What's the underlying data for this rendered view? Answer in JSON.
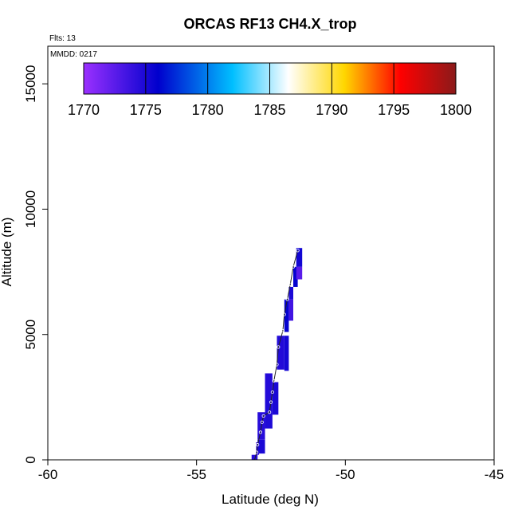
{
  "chart_data": {
    "type": "heatmap",
    "title": "ORCAS RF13 CH4.X_trop",
    "flights_note": "Flts: 13",
    "date_note": "MMDD: 0217",
    "xlabel": "Latitude (deg N)",
    "ylabel": "Altitude (m)",
    "xlim": [
      -60,
      -45
    ],
    "ylim": [
      0,
      16500
    ],
    "x_ticks": [
      -60,
      -55,
      -50,
      -45
    ],
    "x_tick_labels": [
      "-60",
      "-55",
      "-50",
      "-45"
    ],
    "y_ticks": [
      0,
      5000,
      10000,
      15000
    ],
    "y_tick_labels": [
      "0",
      "5000",
      "10000",
      "15000"
    ],
    "colorbar": {
      "min": 1770,
      "max": 1800,
      "ticks": [
        1770,
        1775,
        1780,
        1785,
        1790,
        1795,
        1800
      ],
      "tick_labels": [
        "1770",
        "1775",
        "1780",
        "1785",
        "1790",
        "1795",
        "1800"
      ],
      "colors": [
        "#9b30ff",
        "#0000cd",
        "#00bfff",
        "#ffffff",
        "#ffd700",
        "#ff0000",
        "#8b1a1a"
      ],
      "color_positions": [
        0,
        0.2,
        0.4,
        0.55,
        0.7,
        0.85,
        1
      ]
    },
    "cells": [
      {
        "lat0": -53.15,
        "lat1": -52.95,
        "alt0": 0,
        "alt1": 200,
        "value": 1774.5
      },
      {
        "lat0": -53.0,
        "lat1": -52.9,
        "alt0": 200,
        "alt1": 700,
        "value": 1774.0
      },
      {
        "lat0": -52.95,
        "lat1": -52.7,
        "alt0": 250,
        "alt1": 800,
        "value": 1775.0
      },
      {
        "lat0": -52.95,
        "lat1": -52.7,
        "alt0": 800,
        "alt1": 1900,
        "value": 1774.5
      },
      {
        "lat0": -52.7,
        "lat1": -52.45,
        "alt0": 1250,
        "alt1": 2400,
        "value": 1774.8
      },
      {
        "lat0": -52.7,
        "lat1": -52.45,
        "alt0": 2400,
        "alt1": 3450,
        "value": 1774.6
      },
      {
        "lat0": -52.45,
        "lat1": -52.25,
        "alt0": 1800,
        "alt1": 3100,
        "value": 1775.0
      },
      {
        "lat0": -52.3,
        "lat1": -52.05,
        "alt0": 3600,
        "alt1": 4950,
        "value": 1774.7
      },
      {
        "lat0": -52.05,
        "lat1": -51.9,
        "alt0": 3550,
        "alt1": 4950,
        "value": 1775.2
      },
      {
        "lat0": -52.05,
        "lat1": -51.9,
        "alt0": 5100,
        "alt1": 6400,
        "value": 1775.8
      },
      {
        "lat0": -51.9,
        "lat1": -51.75,
        "alt0": 5550,
        "alt1": 6400,
        "value": 1773.5
      },
      {
        "lat0": -51.9,
        "lat1": -51.75,
        "alt0": 6400,
        "alt1": 6900,
        "value": 1774.9
      },
      {
        "lat0": -51.75,
        "lat1": -51.6,
        "alt0": 6900,
        "alt1": 7700,
        "value": 1775.8
      },
      {
        "lat0": -51.65,
        "lat1": -51.45,
        "alt0": 7200,
        "alt1": 7700,
        "value": 1772.5
      },
      {
        "lat0": -51.65,
        "lat1": -51.45,
        "alt0": 7700,
        "alt1": 8450,
        "value": 1775.3
      }
    ],
    "track_points": [
      {
        "lat": -53.05,
        "alt": 0
      },
      {
        "lat": -52.98,
        "alt": 300
      },
      {
        "lat": -52.95,
        "alt": 600
      },
      {
        "lat": -52.85,
        "alt": 1100
      },
      {
        "lat": -52.8,
        "alt": 1500
      },
      {
        "lat": -52.75,
        "alt": 1750
      },
      {
        "lat": -52.55,
        "alt": 1900
      },
      {
        "lat": -52.5,
        "alt": 2300
      },
      {
        "lat": -52.45,
        "alt": 2700
      },
      {
        "lat": -52.4,
        "alt": 3150
      },
      {
        "lat": -52.3,
        "alt": 3800
      },
      {
        "lat": -52.25,
        "alt": 4500
      },
      {
        "lat": -52.1,
        "alt": 5150
      },
      {
        "lat": -52.05,
        "alt": 5800
      },
      {
        "lat": -51.95,
        "alt": 6400
      },
      {
        "lat": -51.85,
        "alt": 7000
      },
      {
        "lat": -51.75,
        "alt": 7700
      },
      {
        "lat": -51.6,
        "alt": 8350
      }
    ]
  }
}
